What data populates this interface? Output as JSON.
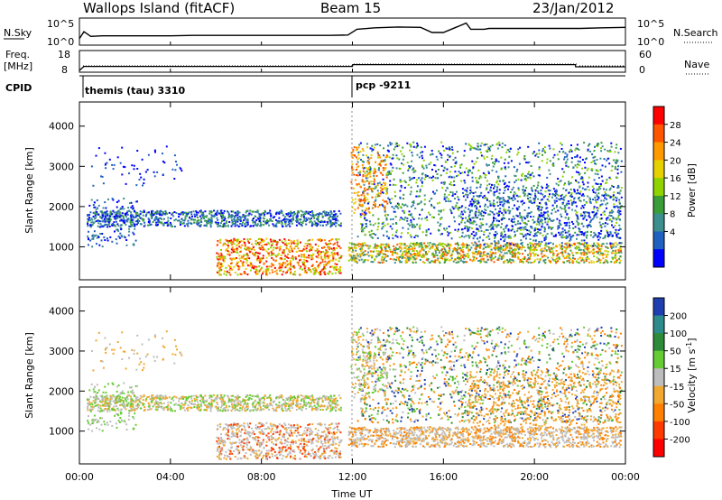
{
  "header": {
    "station": "Wallops Island (fitACF)",
    "beam": "Beam 15",
    "date": "23/Jan/2012"
  },
  "noise_panel": {
    "left_label": "N.Sky",
    "right_label": "N.Search",
    "left_ticks": [
      "10^5",
      "10^0"
    ],
    "right_ticks": [
      "10^5",
      "10^0"
    ]
  },
  "freq_panel": {
    "left_label_1": "Freq.",
    "left_label_2": "[MHz]",
    "right_label": "Nave",
    "left_ticks": [
      "18",
      "8"
    ],
    "right_ticks": [
      "60",
      "0"
    ]
  },
  "cpid_panel": {
    "label": "CPID",
    "segments": [
      {
        "start_hour": 0,
        "end_hour": 12,
        "text": "themis (tau) 3310"
      },
      {
        "start_hour": 12,
        "end_hour": 24,
        "text": "pcp -9211"
      }
    ]
  },
  "time_axis": {
    "label": "Time UT",
    "tick_labels": [
      "00:00",
      "04:00",
      "08:00",
      "12:00",
      "16:00",
      "20:00",
      "00:00"
    ],
    "tick_hours": [
      0,
      4,
      8,
      12,
      16,
      20,
      24
    ]
  },
  "power_colorbar": {
    "label": "Power [dB]",
    "tick_labels": [
      "28",
      "24",
      "20",
      "16",
      "12",
      "8",
      "4"
    ],
    "colors": [
      "#ff0000",
      "#ff5500",
      "#ff9900",
      "#e6d000",
      "#8fd400",
      "#3a9d3a",
      "#3d8f8f",
      "#2060c0",
      "#0000ff"
    ]
  },
  "velocity_colorbar": {
    "label": "Velocity [m s",
    "label_sup": "-1",
    "label_end": "]",
    "tick_labels": [
      "200",
      "100",
      "50",
      "15",
      "-15",
      "-50",
      "-100",
      "-200"
    ],
    "colors": [
      "#1f3fb0",
      "#2e8b8b",
      "#2e8b3a",
      "#66cc33",
      "#bdbdbd",
      "#f0a830",
      "#ff7f00",
      "#ff3a00",
      "#ff0000"
    ]
  },
  "chart_data": [
    {
      "type": "line",
      "panel": "noise",
      "ylabel": "N.Sky",
      "yscale": "log",
      "ylim": [
        1,
        100000
      ],
      "x_hours": [
        0,
        0.2,
        0.5,
        1,
        2,
        3,
        4,
        5,
        6,
        7,
        8,
        9,
        10,
        11,
        11.8,
        12.2,
        13,
        14,
        15,
        15.5,
        16,
        16.5,
        17,
        17.2,
        17.8,
        18,
        19,
        20,
        21,
        22,
        23,
        24
      ],
      "series": [
        {
          "values": [
            10,
            300,
            30,
            40,
            40,
            40,
            40,
            50,
            50,
            50,
            50,
            50,
            50,
            50,
            60,
            1000,
            2000,
            3000,
            2500,
            200,
            200,
            2000,
            20000,
            1000,
            1000,
            1500,
            1500,
            1500,
            1500,
            1500,
            2000,
            2500
          ]
        }
      ]
    },
    {
      "type": "line",
      "panel": "frequency",
      "ylabel": "Freq. [MHz]",
      "ylim": [
        8,
        18
      ],
      "x_hours": [
        0,
        0.2,
        12,
        12.01,
        21.8,
        21.81,
        24
      ],
      "series": [
        {
          "name": "Freq.",
          "values": [
            8,
            10.2,
            10.2,
            11.2,
            11.2,
            10.0,
            10.0
          ]
        }
      ]
    },
    {
      "type": "scatter",
      "panel": "power",
      "ylabel": "Slant Range [km]",
      "xlabel": "Time UT",
      "xlim": [
        0,
        24
      ],
      "ylim": [
        180,
        4600
      ],
      "y_ticks": [
        1000,
        2000,
        3000,
        4000
      ],
      "colorbar": "Power [dB]"
    },
    {
      "type": "scatter",
      "panel": "velocity",
      "ylabel": "Slant Range [km]",
      "xlabel": "Time UT",
      "xlim": [
        0,
        24
      ],
      "ylim": [
        180,
        4600
      ],
      "y_ticks": [
        1000,
        2000,
        3000,
        4000
      ],
      "colorbar": "Velocity [m s-1]"
    }
  ]
}
